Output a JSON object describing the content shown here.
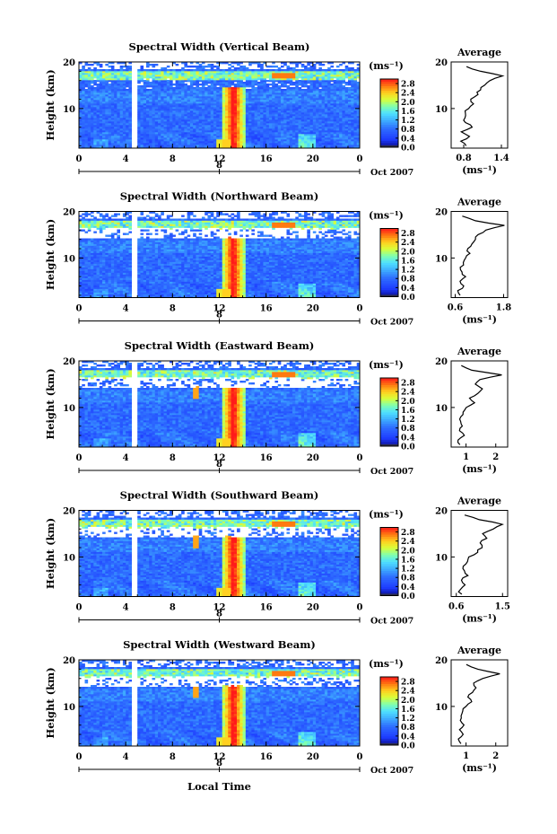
{
  "figure": {
    "xlabel_bottom": "Local Time",
    "date_label": "Oct 2007",
    "colorbar_unit": "(ms⁻¹)",
    "average_title": "Average"
  },
  "chart_data": [
    {
      "type": "heatmap",
      "title": "Spectral Width (Vertical Beam)",
      "xlabel": "Local Time",
      "ylabel": "Height (km)",
      "xlim": [
        0,
        24
      ],
      "ylim": [
        1.5,
        20
      ],
      "xticks": [
        "0",
        "4",
        "8",
        "12",
        "16",
        "20",
        "0"
      ],
      "yticks": [
        "10",
        "20"
      ],
      "day_label": "8",
      "colorbar": {
        "unit": "(ms⁻¹)",
        "range": [
          0,
          3.0
        ],
        "ticks": [
          "0.0",
          "0.4",
          "0.8",
          "1.2",
          "1.6",
          "2.0",
          "2.4",
          "2.8"
        ]
      },
      "data_gap_hours": [
        4.5,
        4.9
      ],
      "features": {
        "convective_column_hours": [
          12.2,
          14.2
        ],
        "tropopause_km": 17
      },
      "average_profile": {
        "title": "Average",
        "xlabel": "(ms⁻¹)",
        "xticks": [
          "0.8",
          "1.4"
        ],
        "xlim": [
          0.6,
          1.5
        ],
        "height_km": [
          2,
          3,
          4,
          5,
          6,
          7,
          8,
          9,
          10,
          11,
          12,
          13,
          14,
          15,
          16,
          17,
          18,
          19
        ],
        "value": [
          0.82,
          0.75,
          0.9,
          0.78,
          0.95,
          0.82,
          0.8,
          0.84,
          0.87,
          0.95,
          0.9,
          1.03,
          1.05,
          1.12,
          1.2,
          1.4,
          1.07,
          0.85
        ]
      }
    },
    {
      "type": "heatmap",
      "title": "Spectral Width (Northward Beam)",
      "xlabel": "Local Time",
      "ylabel": "Height (km)",
      "xlim": [
        0,
        24
      ],
      "ylim": [
        1.5,
        20
      ],
      "xticks": [
        "0",
        "4",
        "8",
        "12",
        "16",
        "20",
        "0"
      ],
      "yticks": [
        "10",
        "20"
      ],
      "day_label": "8",
      "colorbar": {
        "unit": "(ms⁻¹)",
        "range": [
          0,
          3.0
        ],
        "ticks": [
          "0.0",
          "0.4",
          "0.8",
          "1.2",
          "1.6",
          "2.0",
          "2.4",
          "2.8"
        ]
      },
      "data_gap_hours": [
        4.5,
        4.9
      ],
      "features": {
        "convective_column_hours": [
          12.2,
          14.2
        ],
        "tropopause_km": 17
      },
      "average_profile": {
        "title": "Average",
        "xlabel": "(ms⁻¹)",
        "xticks": [
          "0.6",
          "1.8"
        ],
        "xlim": [
          0.5,
          1.9
        ],
        "height_km": [
          2,
          3,
          4,
          5,
          6,
          7,
          8,
          9,
          10,
          11,
          12,
          13,
          14,
          15,
          16,
          17,
          18,
          19
        ],
        "value": [
          0.72,
          0.68,
          0.8,
          0.7,
          0.86,
          0.76,
          0.74,
          0.8,
          0.84,
          0.95,
          0.9,
          1.02,
          1.1,
          1.18,
          1.35,
          1.8,
          1.1,
          0.78
        ]
      }
    },
    {
      "type": "heatmap",
      "title": "Spectral Width (Eastward Beam)",
      "xlabel": "Local Time",
      "ylabel": "Height (km)",
      "xlim": [
        0,
        24
      ],
      "ylim": [
        1.5,
        20
      ],
      "xticks": [
        "0",
        "4",
        "8",
        "12",
        "16",
        "20",
        "0"
      ],
      "yticks": [
        "10",
        "20"
      ],
      "day_label": "8",
      "colorbar": {
        "unit": "(ms⁻¹)",
        "range": [
          0,
          3.0
        ],
        "ticks": [
          "0.0",
          "0.4",
          "0.8",
          "1.2",
          "1.6",
          "2.0",
          "2.4",
          "2.8"
        ]
      },
      "data_gap_hours": [
        4.5,
        4.9
      ],
      "features": {
        "convective_column_hours": [
          12.2,
          14.2
        ],
        "tropopause_km": 17
      },
      "average_profile": {
        "title": "Average",
        "xlabel": "(ms⁻¹)",
        "xticks": [
          "1",
          "2"
        ],
        "xlim": [
          0.5,
          2.4
        ],
        "height_km": [
          2,
          3,
          4,
          5,
          6,
          7,
          8,
          9,
          10,
          11,
          12,
          13,
          14,
          15,
          16,
          17,
          18,
          19
        ],
        "value": [
          0.8,
          0.72,
          0.95,
          0.78,
          0.88,
          0.8,
          0.82,
          0.9,
          1.0,
          1.3,
          1.1,
          1.4,
          1.55,
          1.3,
          1.45,
          2.2,
          1.2,
          0.85
        ]
      }
    },
    {
      "type": "heatmap",
      "title": "Spectral Width (Southward Beam)",
      "xlabel": "Local Time",
      "ylabel": "Height (km)",
      "xlim": [
        0,
        24
      ],
      "ylim": [
        1.5,
        20
      ],
      "xticks": [
        "0",
        "4",
        "8",
        "12",
        "16",
        "20",
        "0"
      ],
      "yticks": [
        "10",
        "20"
      ],
      "day_label": "8",
      "colorbar": {
        "unit": "(ms⁻¹)",
        "range": [
          0,
          3.0
        ],
        "ticks": [
          "0.0",
          "0.4",
          "0.8",
          "1.2",
          "1.6",
          "2.0",
          "2.4",
          "2.8"
        ]
      },
      "data_gap_hours": [
        4.5,
        4.9
      ],
      "features": {
        "convective_column_hours": [
          12.2,
          14.2
        ],
        "tropopause_km": 17
      },
      "average_profile": {
        "title": "Average",
        "xlabel": "(ms⁻¹)",
        "xticks": [
          "0.6",
          "1.5"
        ],
        "xlim": [
          0.5,
          1.6
        ],
        "height_km": [
          2,
          3,
          4,
          5,
          6,
          7,
          8,
          9,
          10,
          11,
          12,
          13,
          14,
          15,
          16,
          17,
          18,
          19
        ],
        "value": [
          0.7,
          0.66,
          0.78,
          0.7,
          0.82,
          0.74,
          0.75,
          0.8,
          0.86,
          1.0,
          1.1,
          1.05,
          1.2,
          1.12,
          1.3,
          1.5,
          1.05,
          0.75
        ]
      }
    },
    {
      "type": "heatmap",
      "title": "Spectral Width (Westward Beam)",
      "xlabel": "Local Time",
      "ylabel": "Height (km)",
      "xlim": [
        0,
        24
      ],
      "ylim": [
        1.5,
        20
      ],
      "xticks": [
        "0",
        "4",
        "8",
        "12",
        "16",
        "20",
        "0"
      ],
      "yticks": [
        "10",
        "20"
      ],
      "day_label": "8",
      "colorbar": {
        "unit": "(ms⁻¹)",
        "range": [
          0,
          3.0
        ],
        "ticks": [
          "0.0",
          "0.4",
          "0.8",
          "1.2",
          "1.6",
          "2.0",
          "2.4",
          "2.8"
        ]
      },
      "data_gap_hours": [
        4.5,
        4.9
      ],
      "features": {
        "convective_column_hours": [
          12.2,
          14.2
        ],
        "tropopause_km": 17
      },
      "average_profile": {
        "title": "Average",
        "xlabel": "(ms⁻¹)",
        "xticks": [
          "1",
          "2"
        ],
        "xlim": [
          0.5,
          2.4
        ],
        "height_km": [
          2,
          3,
          4,
          5,
          6,
          7,
          8,
          9,
          10,
          11,
          12,
          13,
          14,
          15,
          16,
          17,
          18,
          19
        ],
        "value": [
          0.82,
          0.74,
          0.9,
          0.8,
          0.92,
          0.82,
          0.85,
          0.9,
          0.98,
          1.2,
          1.05,
          1.2,
          1.35,
          1.25,
          1.55,
          2.15,
          1.4,
          1.0
        ]
      }
    }
  ]
}
